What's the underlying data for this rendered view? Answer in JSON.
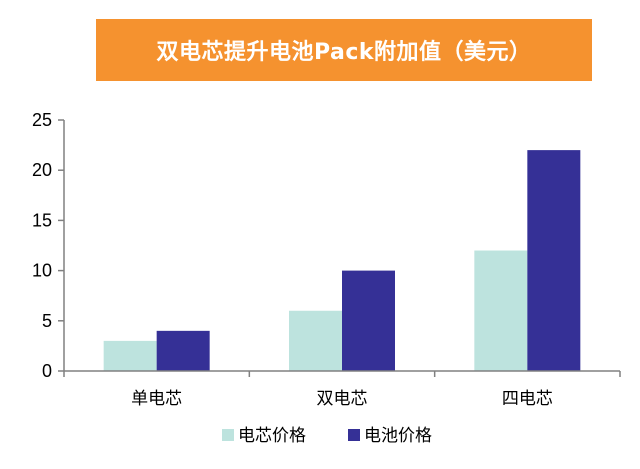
{
  "colors": {
    "banner": "#f5922f",
    "axis": "#808080",
    "series_light": "#bde3de",
    "series_dark": "#353096"
  },
  "chart_data": {
    "type": "bar",
    "title": "双电芯提升电池Pack附加值（美元）",
    "xlabel": "",
    "ylabel": "",
    "categories": [
      "单电芯",
      "双电芯",
      "四电芯"
    ],
    "series": [
      {
        "name": "电芯价格",
        "values": [
          3,
          6,
          12
        ]
      },
      {
        "name": "电池价格",
        "values": [
          4,
          10,
          22
        ]
      }
    ],
    "ylim": [
      0,
      25
    ],
    "yticks": [
      "0",
      "5",
      "10",
      "15",
      "20",
      "25"
    ],
    "grid": false,
    "legend": "bottom"
  }
}
